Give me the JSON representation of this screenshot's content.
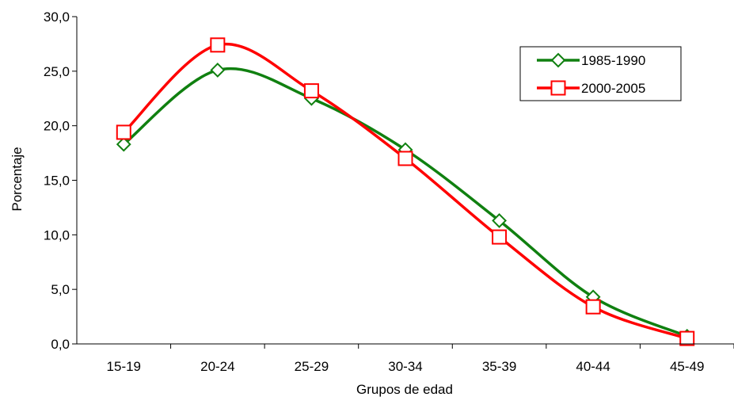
{
  "chart_data": {
    "type": "line",
    "title": "",
    "xlabel": "Grupos de edad",
    "ylabel": "Porcentaje",
    "categories": [
      "15-19",
      "20-24",
      "25-29",
      "30-34",
      "35-39",
      "40-44",
      "45-49"
    ],
    "ylim": [
      0,
      30
    ],
    "yticks": [
      "0,0",
      "5,0",
      "10,0",
      "15,0",
      "20,0",
      "25,0",
      "30,0"
    ],
    "grid": false,
    "legend_position": "top-right",
    "smooth": true,
    "series": [
      {
        "name": "1985-1990",
        "values": [
          18.3,
          25.1,
          22.5,
          17.8,
          11.3,
          4.3,
          0.7
        ],
        "color": "#108010",
        "marker": "diamond"
      },
      {
        "name": "2000-2005",
        "values": [
          19.4,
          27.4,
          23.2,
          17.0,
          9.8,
          3.4,
          0.5
        ],
        "color": "#ff0000",
        "marker": "square"
      }
    ]
  }
}
